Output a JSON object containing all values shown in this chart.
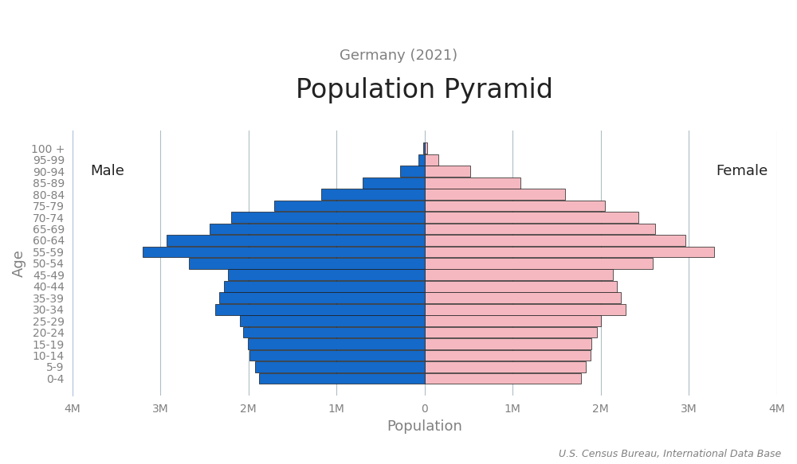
{
  "title": "Population Pyramid",
  "subtitle": "Germany (2021)",
  "xlabel": "Population",
  "ylabel": "Age",
  "source": "U.S. Census Bureau, International Data Base",
  "age_groups": [
    "0-4",
    "5-9",
    "10-14",
    "15-19",
    "20-24",
    "25-29",
    "30-34",
    "35-39",
    "40-44",
    "45-49",
    "50-54",
    "55-59",
    "60-64",
    "65-69",
    "70-74",
    "75-79",
    "80-84",
    "85-89",
    "90-94",
    "95-99",
    "100 +"
  ],
  "male": [
    1876000,
    1928000,
    1987000,
    2005000,
    2060000,
    2100000,
    2380000,
    2330000,
    2280000,
    2230000,
    2680000,
    3200000,
    2930000,
    2440000,
    2200000,
    1710000,
    1170000,
    700000,
    275000,
    68000,
    13000
  ],
  "female": [
    1780000,
    1828000,
    1882000,
    1893000,
    1960000,
    2000000,
    2280000,
    2230000,
    2180000,
    2140000,
    2590000,
    3290000,
    2960000,
    2620000,
    2430000,
    2050000,
    1600000,
    1090000,
    515000,
    157000,
    34000
  ],
  "male_color": "#1469C9",
  "female_color": "#F5B8C0",
  "male_edge_color": "#1a1a1a",
  "female_edge_color": "#1a1a1a",
  "xlim": 4000000,
  "xticks": [
    -4000000,
    -3000000,
    -2000000,
    -1000000,
    0,
    1000000,
    2000000,
    3000000,
    4000000
  ],
  "xtick_labels": [
    "4M",
    "3M",
    "2M",
    "1M",
    "0",
    "1M",
    "2M",
    "3M",
    "4M"
  ],
  "background_color": "#ffffff",
  "grid_color": "#b0bec5",
  "title_fontsize": 24,
  "subtitle_fontsize": 13,
  "label_fontsize": 13,
  "tick_fontsize": 10,
  "source_fontsize": 9,
  "axis_label_color": "#808080",
  "tick_label_color": "#808080",
  "male_label": "Male",
  "female_label": "Female",
  "bar_height": 0.95
}
